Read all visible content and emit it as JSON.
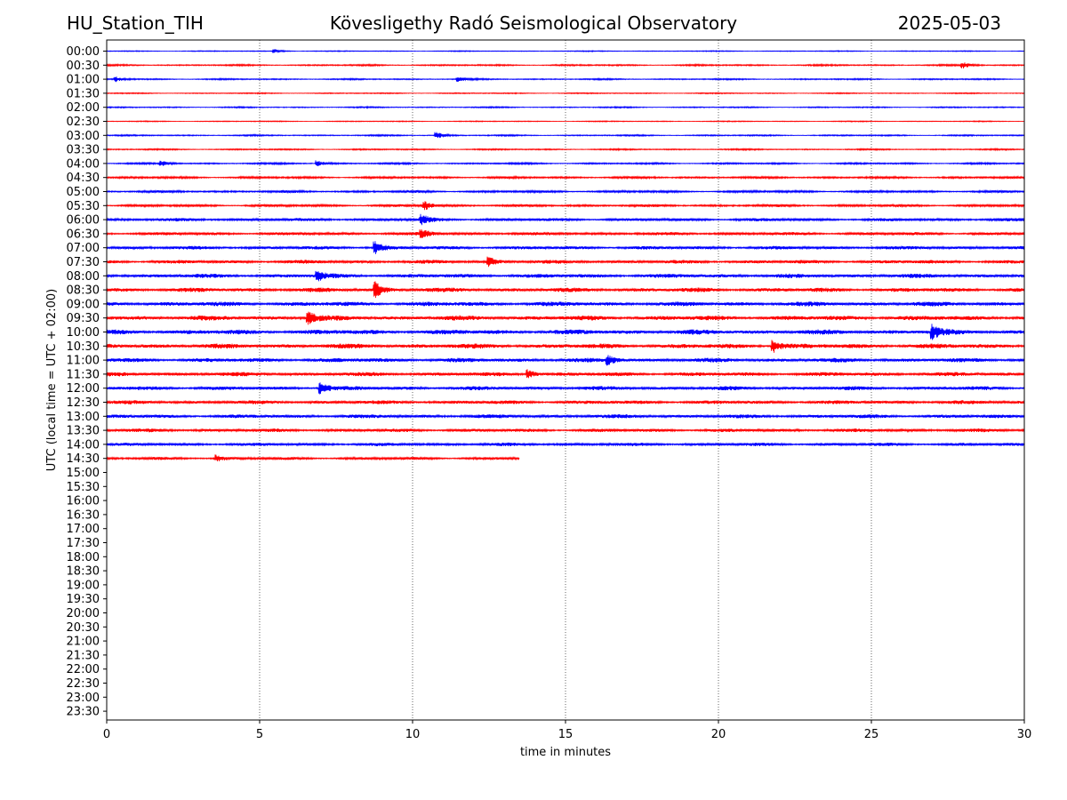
{
  "header": {
    "station": "HU_Station_TIH",
    "observatory": "Kövesligethy Radó Seismological Observatory",
    "date": "2025-05-03"
  },
  "chart_data": {
    "type": "line",
    "subtype": "helicorder",
    "xlabel": "time in minutes",
    "ylabel": "UTC (local time = UTC + 02:00)",
    "xlim": [
      0,
      30
    ],
    "xticks": [
      "0",
      "5",
      "10",
      "15",
      "20",
      "25",
      "30"
    ],
    "vertical_gridlines": true,
    "row_labels": [
      "00:00",
      "00:30",
      "01:00",
      "01:30",
      "02:00",
      "02:30",
      "03:00",
      "03:30",
      "04:00",
      "04:30",
      "05:00",
      "05:30",
      "06:00",
      "06:30",
      "07:00",
      "07:30",
      "08:00",
      "08:30",
      "09:00",
      "09:30",
      "10:00",
      "10:30",
      "11:00",
      "11:30",
      "12:00",
      "12:30",
      "13:00",
      "13:30",
      "14:00",
      "14:30",
      "15:00",
      "15:30",
      "16:00",
      "16:30",
      "17:00",
      "17:30",
      "18:00",
      "18:30",
      "19:00",
      "19:30",
      "20:00",
      "20:30",
      "21:00",
      "21:30",
      "22:00",
      "22:30",
      "23:00",
      "23:30"
    ],
    "trace_colors": [
      "#0000ff",
      "#ff0000"
    ],
    "trace_end_minutes": [
      30,
      30,
      30,
      30,
      30,
      30,
      30,
      30,
      30,
      30,
      30,
      30,
      30,
      30,
      30,
      30,
      30,
      30,
      30,
      30,
      30,
      30,
      30,
      30,
      30,
      30,
      30,
      30,
      30,
      13.5,
      0,
      0,
      0,
      0,
      0,
      0,
      0,
      0,
      0,
      0,
      0,
      0,
      0,
      0,
      0,
      0,
      0,
      0
    ],
    "trace_noise_level": [
      0.3,
      0.5,
      0.45,
      0.35,
      0.4,
      0.3,
      0.45,
      0.45,
      0.55,
      0.7,
      0.75,
      0.8,
      1.0,
      1.0,
      1.1,
      1.15,
      1.3,
      1.35,
      1.45,
      1.5,
      1.55,
      1.5,
      1.35,
      1.3,
      1.25,
      1.2,
      1.2,
      1.1,
      1.05,
      0.9,
      0,
      0,
      0,
      0,
      0,
      0,
      0,
      0,
      0,
      0,
      0,
      0,
      0,
      0,
      0,
      0,
      0,
      0
    ],
    "events": [
      {
        "row": 0,
        "minute": 5.5,
        "amp": 1.2
      },
      {
        "row": 1,
        "minute": 28.0,
        "amp": 2.0
      },
      {
        "row": 2,
        "minute": 0.3,
        "amp": 1.6
      },
      {
        "row": 2,
        "minute": 11.5,
        "amp": 1.4
      },
      {
        "row": 6,
        "minute": 10.8,
        "amp": 2.2
      },
      {
        "row": 8,
        "minute": 6.9,
        "amp": 2.0
      },
      {
        "row": 8,
        "minute": 1.8,
        "amp": 1.6
      },
      {
        "row": 11,
        "minute": 10.4,
        "amp": 3.0
      },
      {
        "row": 12,
        "minute": 10.3,
        "amp": 3.2
      },
      {
        "row": 13,
        "minute": 10.3,
        "amp": 3.0
      },
      {
        "row": 14,
        "minute": 8.8,
        "amp": 4.0
      },
      {
        "row": 15,
        "minute": 12.5,
        "amp": 3.0
      },
      {
        "row": 16,
        "minute": 6.9,
        "amp": 3.2
      },
      {
        "row": 17,
        "minute": 8.8,
        "amp": 5.0
      },
      {
        "row": 19,
        "minute": 6.6,
        "amp": 4.5
      },
      {
        "row": 20,
        "minute": 27.0,
        "amp": 4.5
      },
      {
        "row": 21,
        "minute": 21.8,
        "amp": 4.5
      },
      {
        "row": 22,
        "minute": 16.4,
        "amp": 3.0
      },
      {
        "row": 23,
        "minute": 13.8,
        "amp": 3.0
      },
      {
        "row": 24,
        "minute": 7.0,
        "amp": 4.0
      },
      {
        "row": 29,
        "minute": 3.6,
        "amp": 2.2
      }
    ]
  }
}
